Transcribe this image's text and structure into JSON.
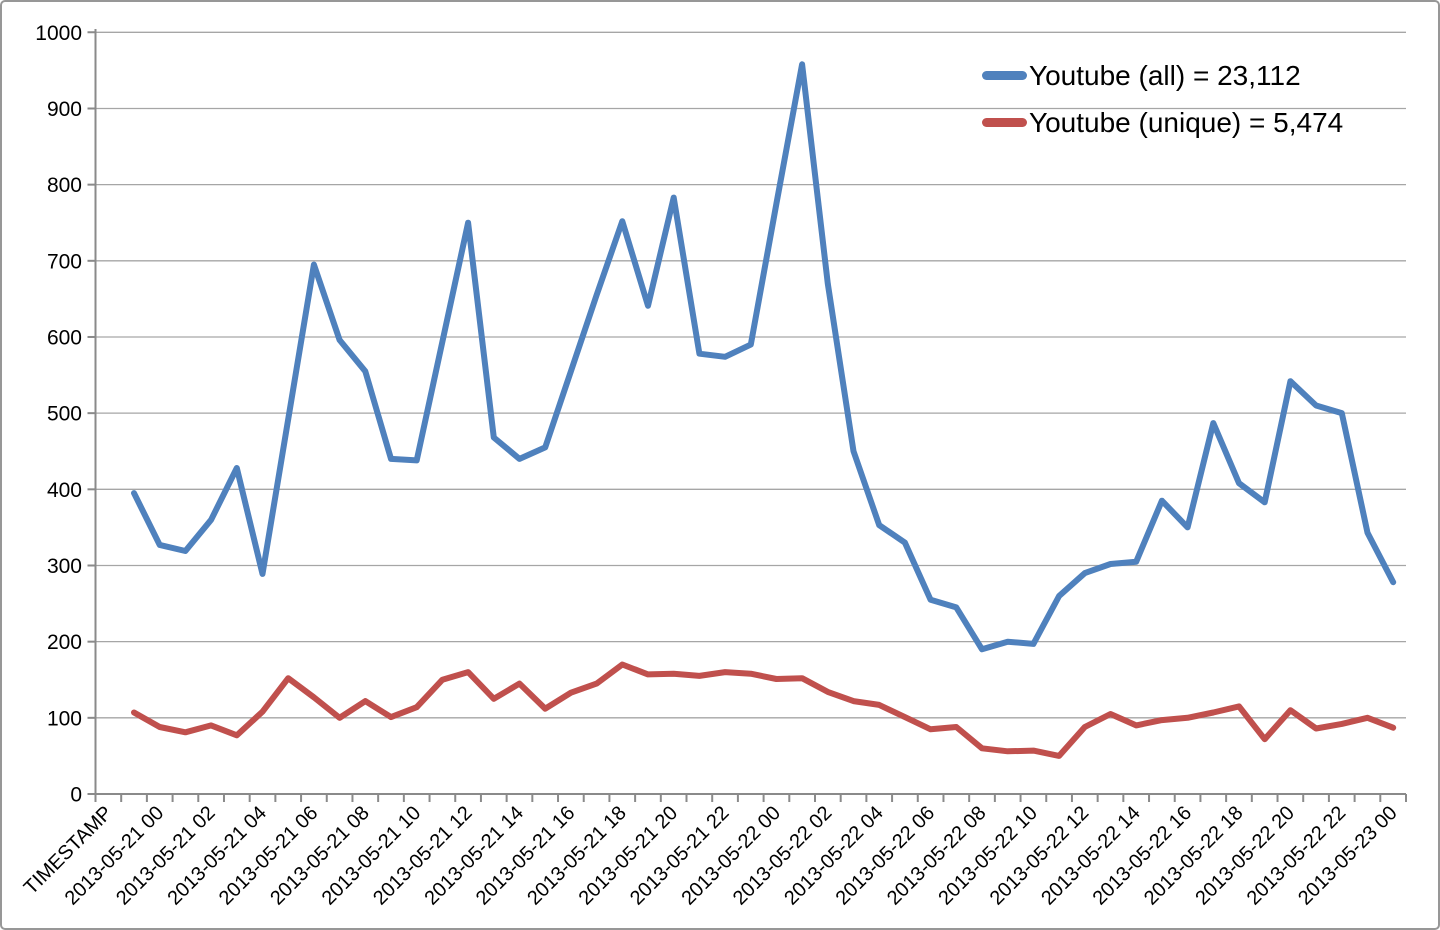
{
  "chart_data": {
    "type": "line",
    "title": "",
    "grid": "horizontal",
    "legend_position": "top-right-inside",
    "x_axis": {
      "num_slots": 51,
      "label_slot_interval": 2,
      "tick_labels": [
        "TIMESTAMP",
        "2013-05-21 00",
        "2013-05-21 02",
        "2013-05-21 04",
        "2013-05-21 06",
        "2013-05-21 08",
        "2013-05-21 10",
        "2013-05-21 12",
        "2013-05-21 14",
        "2013-05-21 16",
        "2013-05-21 18",
        "2013-05-21 20",
        "2013-05-21 22",
        "2013-05-22 00",
        "2013-05-22 02",
        "2013-05-22 04",
        "2013-05-22 06",
        "2013-05-22 08",
        "2013-05-22 10",
        "2013-05-22 12",
        "2013-05-22 14",
        "2013-05-22 16",
        "2013-05-22 18",
        "2013-05-22 20",
        "2013-05-22 22",
        "2013-05-23 00"
      ]
    },
    "y_axis": {
      "min": 0,
      "max": 1000,
      "tick_step": 100,
      "tick_labels": [
        "0",
        "100",
        "200",
        "300",
        "400",
        "500",
        "600",
        "700",
        "800",
        "900",
        "1000"
      ]
    },
    "series": [
      {
        "name": "Youtube (all) = 23,112",
        "color": "#4F81BD",
        "first_slot": 1,
        "values": [
          395,
          327,
          319,
          360,
          428,
          289,
          492,
          695,
          596,
          555,
          440,
          438,
          594,
          750,
          468,
          440,
          455,
          555,
          655,
          752,
          641,
          783,
          578,
          574,
          590,
          775,
          958,
          670,
          450,
          353,
          330,
          255,
          245,
          190,
          200,
          197,
          260,
          290,
          302,
          305,
          385,
          350,
          487,
          408,
          383,
          542,
          510,
          500,
          343,
          278
        ]
      },
      {
        "name": "Youtube (unique) = 5,474",
        "color": "#C0504D",
        "first_slot": 1,
        "values": [
          107,
          88,
          81,
          90,
          77,
          108,
          152,
          127,
          100,
          122,
          101,
          114,
          150,
          160,
          125,
          145,
          112,
          133,
          145,
          170,
          157,
          158,
          155,
          160,
          158,
          151,
          152,
          134,
          122,
          117,
          101,
          85,
          88,
          60,
          56,
          57,
          50,
          88,
          105,
          90,
          97,
          100,
          107,
          115,
          72,
          110,
          86,
          92,
          100,
          87
        ]
      }
    ]
  },
  "colors": {
    "gridline": "#A6A6A6",
    "axis": "#8A8A8A",
    "text": "#000000",
    "frame_border": "#979797",
    "background": "#FFFFFF"
  }
}
